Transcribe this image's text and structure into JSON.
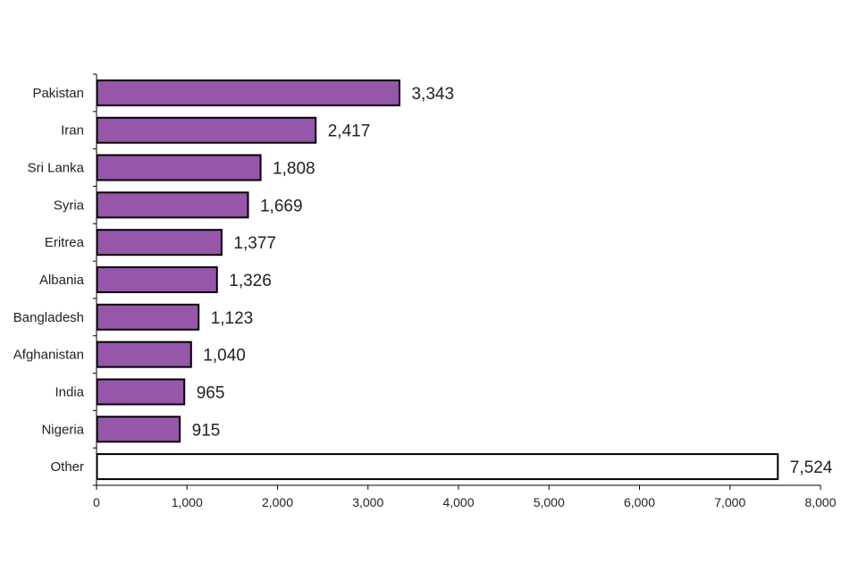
{
  "chart_data": {
    "type": "bar",
    "orientation": "horizontal",
    "title": "",
    "xlabel": "",
    "ylabel": "",
    "categories": [
      "Pakistan",
      "Iran",
      "Sri Lanka",
      "Syria",
      "Eritrea",
      "Albania",
      "Bangladesh",
      "Afghanistan",
      "India",
      "Nigeria",
      "Other"
    ],
    "values": [
      3343,
      2417,
      1808,
      1669,
      1377,
      1326,
      1123,
      1040,
      965,
      915,
      7524
    ],
    "value_labels": [
      "3,343",
      "2,417",
      "1,808",
      "1,669",
      "1,377",
      "1,326",
      "1,123",
      "1,040",
      "965",
      "915",
      "7,524"
    ],
    "xlim": [
      0,
      8000
    ],
    "x_ticks": [
      0,
      1000,
      2000,
      3000,
      4000,
      5000,
      6000,
      7000,
      8000
    ],
    "x_tick_labels": [
      "0",
      "1,000",
      "2,000",
      "3,000",
      "4,000",
      "5,000",
      "6,000",
      "7,000",
      "8,000"
    ],
    "grid": false,
    "colors": {
      "bar_fill": "#9656aa",
      "other_fill": "#ffffff",
      "bar_stroke": "#000000"
    }
  }
}
